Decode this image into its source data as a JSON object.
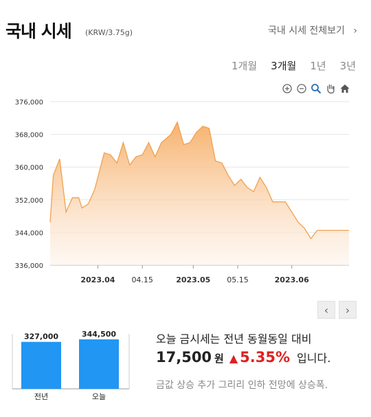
{
  "header": {
    "title": "국내 시세",
    "unit": "(KRW/3.75g)",
    "view_all_link": "국내 시세 전체보기",
    "view_all_chevron": "chevron-right-icon"
  },
  "periods": [
    {
      "label": "1개월",
      "active": false
    },
    {
      "label": "3개월",
      "active": true
    },
    {
      "label": "1년",
      "active": false
    },
    {
      "label": "3년",
      "active": false
    }
  ],
  "toolbar": [
    "zoom-in-icon",
    "zoom-out-icon",
    "magnifier-icon",
    "pan-hand-icon",
    "home-icon"
  ],
  "colors": {
    "line": "#f0a050",
    "fill_top": "#f7b26e",
    "fill_bottom": "#fdf3ea",
    "bar": "#2196f3",
    "up": "#e02020"
  },
  "chart_data": {
    "type": "area",
    "ylim": [
      336000,
      376000
    ],
    "y_ticks": [
      "376,000",
      "368,000",
      "360,000",
      "352,000",
      "344,000",
      "336,000"
    ],
    "x_ticks": [
      "2023.04",
      "04.15",
      "2023.05",
      "05.15",
      "2023.06"
    ],
    "x": [
      "2023-03-17",
      "2023-03-18",
      "2023-03-20",
      "2023-03-22",
      "2023-03-24",
      "2023-03-26",
      "2023-03-27",
      "2023-03-29",
      "2023-03-31",
      "2023-04-03",
      "2023-04-05",
      "2023-04-07",
      "2023-04-09",
      "2023-04-11",
      "2023-04-13",
      "2023-04-15",
      "2023-04-17",
      "2023-04-19",
      "2023-04-21",
      "2023-04-24",
      "2023-04-26",
      "2023-04-28",
      "2023-04-30",
      "2023-05-02",
      "2023-05-04",
      "2023-05-06",
      "2023-05-08",
      "2023-05-10",
      "2023-05-12",
      "2023-05-14",
      "2023-05-16",
      "2023-05-18",
      "2023-05-20",
      "2023-05-22",
      "2023-05-24",
      "2023-05-26",
      "2023-05-28",
      "2023-05-30",
      "2023-06-01",
      "2023-06-03",
      "2023-06-05",
      "2023-06-07",
      "2023-06-09",
      "2023-06-11",
      "2023-06-13",
      "2023-06-15",
      "2023-06-17",
      "2023-06-19"
    ],
    "values": [
      346500,
      358000,
      362000,
      349000,
      352500,
      352500,
      350000,
      351000,
      354500,
      363500,
      363000,
      361000,
      366000,
      360500,
      362500,
      363000,
      366000,
      362500,
      366000,
      368000,
      371000,
      365500,
      366000,
      368500,
      370000,
      369500,
      361500,
      361000,
      358000,
      355500,
      357000,
      355000,
      354000,
      357500,
      355000,
      351500,
      351500,
      351500,
      349000,
      346500,
      345000,
      342500,
      344500,
      344500,
      344500,
      344500,
      344500,
      344500
    ]
  },
  "nav": {
    "prev": "‹",
    "next": "›"
  },
  "comparison": {
    "bars": [
      {
        "label": "전년",
        "value": "327,000",
        "amount": 327000
      },
      {
        "label": "오늘",
        "value": "344,500",
        "amount": 344500
      }
    ]
  },
  "summary": {
    "line1": "오늘 금시세는 전년 동월동일 대비",
    "amount": "17,500",
    "won": "원",
    "arrow": "▲",
    "percent": "5.35%",
    "suffix": "입니다.",
    "note": "금값 상승 추가 그리리 인하 전망에 상승폭."
  }
}
